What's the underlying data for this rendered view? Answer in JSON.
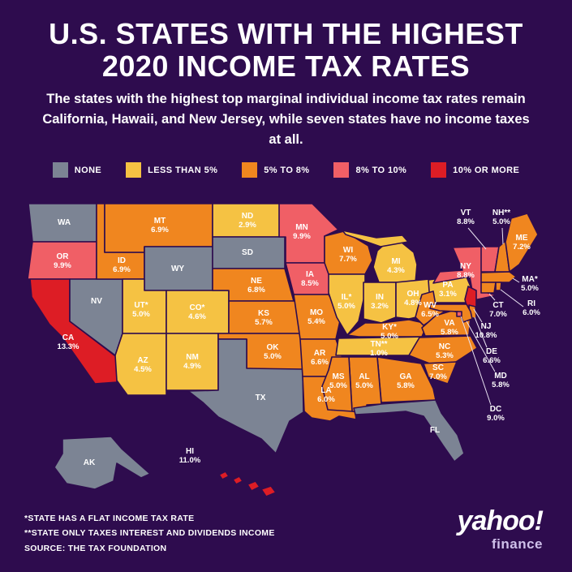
{
  "title": {
    "line1": "U.S. STATES WITH THE HIGHEST",
    "line2": "2020 INCOME TAX RATES"
  },
  "subtitle": "The states with the highest top marginal individual income tax rates remain California, Hawaii, and New Jersey, while seven states have no income taxes at all.",
  "legend": [
    {
      "key": "none",
      "label": "NONE",
      "color": "#7c8494"
    },
    {
      "key": "lt5",
      "label": "LESS THAN 5%",
      "color": "#f5c243"
    },
    {
      "key": "5to8",
      "label": "5% TO 8%",
      "color": "#f0861f"
    },
    {
      "key": "8to10",
      "label": "8% TO 10%",
      "color": "#f05f66"
    },
    {
      "key": "10plus",
      "label": "10% OR MORE",
      "color": "#dd1d25"
    }
  ],
  "footnotes": [
    "*STATE HAS A FLAT INCOME TAX RATE",
    "**STATE ONLY TAXES INTEREST AND DIVIDENDS INCOME",
    "SOURCE: THE TAX FOUNDATION"
  ],
  "logo": {
    "brand": "yahoo!",
    "sub": "finance"
  },
  "chart_data": {
    "type": "choropleth",
    "region": "United States",
    "metric": "2020 top marginal individual income tax rate (%)",
    "categories": {
      "none": "No income tax",
      "lt5": "Less than 5%",
      "5to8": "5% to 8%",
      "8to10": "8% to 10%",
      "10plus": "10% or more"
    },
    "states": {
      "WA": {
        "label": "WA",
        "rate": "",
        "category": "none"
      },
      "OR": {
        "label": "OR",
        "rate": "9.9%",
        "category": "8to10"
      },
      "CA": {
        "label": "CA",
        "rate": "13.3%",
        "category": "10plus"
      },
      "NV": {
        "label": "NV",
        "rate": "",
        "category": "none"
      },
      "ID": {
        "label": "ID",
        "rate": "6.9%",
        "category": "5to8"
      },
      "MT": {
        "label": "MT",
        "rate": "6.9%",
        "category": "5to8"
      },
      "WY": {
        "label": "WY",
        "rate": "",
        "category": "none"
      },
      "UT": {
        "label": "UT*",
        "rate": "5.0%",
        "category": "lt5"
      },
      "CO": {
        "label": "CO*",
        "rate": "4.6%",
        "category": "lt5"
      },
      "AZ": {
        "label": "AZ",
        "rate": "4.5%",
        "category": "lt5"
      },
      "NM": {
        "label": "NM",
        "rate": "4.9%",
        "category": "lt5"
      },
      "ND": {
        "label": "ND",
        "rate": "2.9%",
        "category": "lt5"
      },
      "SD": {
        "label": "SD",
        "rate": "",
        "category": "none"
      },
      "NE": {
        "label": "NE",
        "rate": "6.8%",
        "category": "5to8"
      },
      "KS": {
        "label": "KS",
        "rate": "5.7%",
        "category": "5to8"
      },
      "OK": {
        "label": "OK",
        "rate": "5.0%",
        "category": "5to8"
      },
      "TX": {
        "label": "TX",
        "rate": "",
        "category": "none"
      },
      "MN": {
        "label": "MN",
        "rate": "9.9%",
        "category": "8to10"
      },
      "IA": {
        "label": "IA",
        "rate": "8.5%",
        "category": "8to10"
      },
      "MO": {
        "label": "MO",
        "rate": "5.4%",
        "category": "5to8"
      },
      "AR": {
        "label": "AR",
        "rate": "6.6%",
        "category": "5to8"
      },
      "LA": {
        "label": "LA",
        "rate": "6.0%",
        "category": "5to8"
      },
      "WI": {
        "label": "WI",
        "rate": "7.7%",
        "category": "5to8"
      },
      "IL": {
        "label": "IL*",
        "rate": "5.0%",
        "category": "lt5"
      },
      "MI": {
        "label": "MI",
        "rate": "4.3%",
        "category": "lt5"
      },
      "IN": {
        "label": "IN",
        "rate": "3.2%",
        "category": "lt5"
      },
      "OH": {
        "label": "OH",
        "rate": "4.8%",
        "category": "lt5"
      },
      "KY": {
        "label": "KY*",
        "rate": "5.0%",
        "category": "5to8"
      },
      "TN": {
        "label": "TN**",
        "rate": "1.0%",
        "category": "lt5"
      },
      "PA": {
        "label": "PA",
        "rate": "3.1%",
        "category": "lt5"
      },
      "NY": {
        "label": "NY",
        "rate": "8.8%",
        "category": "8to10"
      },
      "WV": {
        "label": "WV",
        "rate": "6.5%",
        "category": "5to8"
      },
      "VA": {
        "label": "VA",
        "rate": "5.8%",
        "category": "5to8"
      },
      "NC": {
        "label": "NC",
        "rate": "5.3%",
        "category": "5to8"
      },
      "SC": {
        "label": "SC",
        "rate": "7.0%",
        "category": "5to8"
      },
      "GA": {
        "label": "GA",
        "rate": "5.8%",
        "category": "5to8"
      },
      "AL": {
        "label": "AL",
        "rate": "5.0%",
        "category": "5to8"
      },
      "MS": {
        "label": "MS",
        "rate": "5.0%",
        "category": "5to8"
      },
      "FL": {
        "label": "FL",
        "rate": "",
        "category": "none"
      },
      "AK": {
        "label": "AK",
        "rate": "",
        "category": "none"
      },
      "HI": {
        "label": "HI",
        "rate": "11.0%",
        "category": "10plus"
      },
      "VT": {
        "label": "VT",
        "rate": "8.8%",
        "category": "8to10"
      },
      "NH": {
        "label": "NH**",
        "rate": "5.0%",
        "category": "5to8"
      },
      "ME": {
        "label": "ME",
        "rate": "7.2%",
        "category": "5to8"
      },
      "MA": {
        "label": "MA*",
        "rate": "5.0%",
        "category": "5to8"
      },
      "CT": {
        "label": "CT",
        "rate": "7.0%",
        "category": "5to8"
      },
      "RI": {
        "label": "RI",
        "rate": "6.0%",
        "category": "5to8"
      },
      "NJ": {
        "label": "NJ",
        "rate": "10.8%",
        "category": "10plus"
      },
      "DE": {
        "label": "DE",
        "rate": "6.6%",
        "category": "5to8"
      },
      "MD": {
        "label": "MD",
        "rate": "5.8%",
        "category": "5to8"
      },
      "DC": {
        "label": "DC",
        "rate": "9.0%",
        "category": "8to10"
      }
    }
  }
}
